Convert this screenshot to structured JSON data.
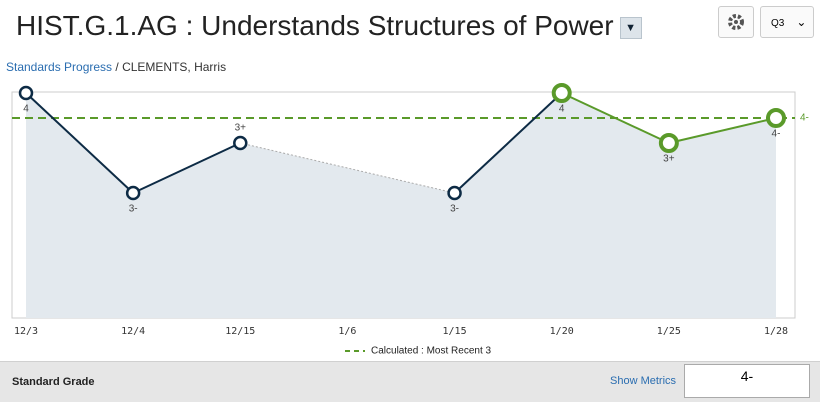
{
  "header": {
    "title": "HIST.G.1.AG : Understands Structures of Power",
    "period": "Q3"
  },
  "breadcrumb": {
    "link": "Standards Progress",
    "student": "CLEMENTS, Harris"
  },
  "chart_data": {
    "type": "line",
    "categories": [
      "12/3",
      "12/4",
      "12/15",
      "1/6",
      "1/15",
      "1/20",
      "1/25",
      "1/28"
    ],
    "values": [
      4,
      3,
      3.5,
      null,
      3,
      4,
      3.5,
      3.75
    ],
    "value_labels": [
      "4",
      "3-",
      "3+",
      null,
      "3-",
      "4",
      "3+",
      "4-"
    ],
    "colors": [
      "#0d2b45",
      "#0d2b45",
      "#0d2b45",
      "#0d2b45",
      "#0d2b45",
      "#5a9a2a",
      "#5a9a2a",
      "#5a9a2a"
    ],
    "area_color": "#e3e9ee",
    "ylim": [
      1.75,
      4
    ],
    "calculated": {
      "name": "Calculated : Most Recent 3",
      "value": 3.75,
      "label": "4-",
      "color": "#5a9a2a"
    }
  },
  "footer": {
    "label": "Standard Grade",
    "link": "Show Metrics",
    "grade": "4-"
  }
}
